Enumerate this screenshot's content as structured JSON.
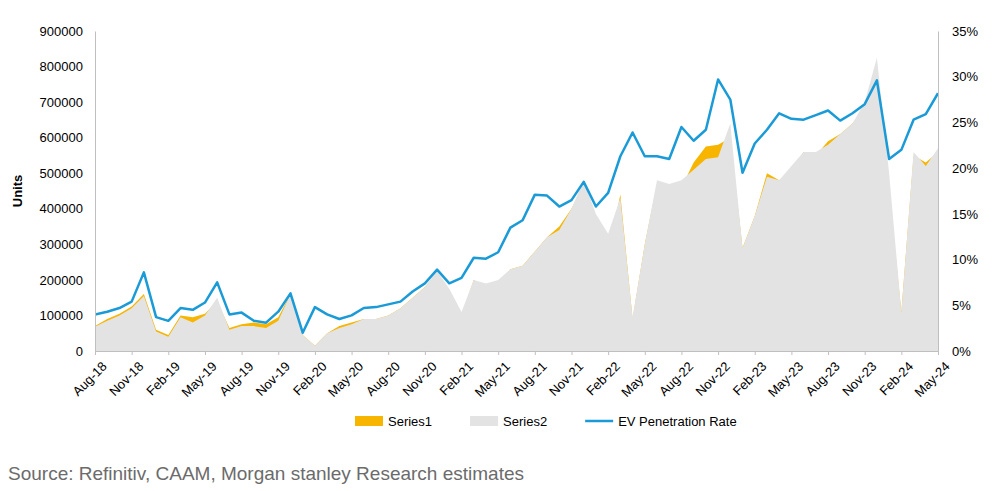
{
  "chart_data": {
    "type": "area",
    "y_label": "Units",
    "source": "Source: Refinitiv, CAAM, Morgan stanley Research estimates",
    "categories": [
      "Aug-18",
      null,
      null,
      "Nov-18",
      null,
      null,
      "Feb-19",
      null,
      null,
      "May-19",
      null,
      null,
      "Aug-19",
      null,
      null,
      "Nov-19",
      null,
      null,
      "Feb-20",
      null,
      null,
      "May-20",
      null,
      null,
      "Aug-20",
      null,
      null,
      "Nov-20",
      null,
      null,
      "Feb-21",
      null,
      null,
      "May-21",
      null,
      null,
      "Aug-21",
      null,
      null,
      "Nov-21",
      null,
      null,
      "Feb-22",
      null,
      null,
      "May-22",
      null,
      null,
      "Aug-22",
      null,
      null,
      "Nov-22",
      null,
      null,
      "Feb-23",
      null,
      null,
      "May-23",
      null,
      null,
      "Aug-23",
      null,
      null,
      "Nov-23",
      null,
      null,
      "Feb-24",
      null,
      null,
      "May-24"
    ],
    "ylim": [
      0,
      900000
    ],
    "yticks": [
      0,
      100000,
      200000,
      300000,
      400000,
      500000,
      600000,
      700000,
      800000,
      900000
    ],
    "y2lim": [
      0,
      35
    ],
    "y2ticks": [
      {
        "value": 0,
        "label": "0%"
      },
      {
        "value": 5,
        "label": "5%"
      },
      {
        "value": 10,
        "label": "10%"
      },
      {
        "value": 15,
        "label": "15%"
      },
      {
        "value": 20,
        "label": "20%"
      },
      {
        "value": 25,
        "label": "25%"
      },
      {
        "value": 30,
        "label": "30%"
      },
      {
        "value": 35,
        "label": "35%"
      }
    ],
    "grid": false,
    "legend": "bottom",
    "series": [
      {
        "name": "Series1",
        "type": "area",
        "color": "#f7b500",
        "values": [
          70000,
          90000,
          105000,
          125000,
          160000,
          60000,
          45000,
          100000,
          95000,
          105000,
          140000,
          65000,
          75000,
          80000,
          75000,
          95000,
          160000,
          45000,
          15000,
          50000,
          70000,
          80000,
          90000,
          90000,
          100000,
          120000,
          150000,
          180000,
          220000,
          170000,
          100000,
          200000,
          180000,
          190000,
          230000,
          240000,
          280000,
          320000,
          350000,
          400000,
          470000,
          380000,
          270000,
          440000,
          90000,
          300000,
          470000,
          470000,
          460000,
          530000,
          575000,
          580000,
          600000,
          290000,
          380000,
          500000,
          480000,
          510000,
          560000,
          550000,
          590000,
          610000,
          640000,
          680000,
          750000,
          450000,
          110000,
          550000,
          530000,
          560000
        ]
      },
      {
        "name": "Series2",
        "type": "area",
        "color": "#e3e3e3",
        "values": [
          68000,
          85000,
          100000,
          120000,
          155000,
          55000,
          40000,
          95000,
          80000,
          100000,
          150000,
          60000,
          70000,
          70000,
          65000,
          85000,
          160000,
          45000,
          15000,
          50000,
          65000,
          75000,
          90000,
          90000,
          100000,
          120000,
          150000,
          180000,
          225000,
          175000,
          110000,
          200000,
          190000,
          200000,
          230000,
          240000,
          280000,
          320000,
          340000,
          400000,
          480000,
          385000,
          330000,
          430000,
          95000,
          300000,
          480000,
          470000,
          480000,
          510000,
          540000,
          545000,
          640000,
          290000,
          380000,
          490000,
          480000,
          520000,
          560000,
          560000,
          580000,
          610000,
          640000,
          700000,
          825000,
          500000,
          110000,
          560000,
          520000,
          570000
        ]
      },
      {
        "name": "EV Penetration Rate",
        "type": "line",
        "axis": "y2",
        "color": "#1a9ad6",
        "values": [
          4.0,
          4.3,
          4.7,
          5.4,
          8.6,
          3.7,
          3.3,
          4.7,
          4.5,
          5.3,
          7.5,
          4.0,
          4.2,
          3.3,
          3.1,
          4.3,
          6.3,
          2.0,
          4.8,
          4.0,
          3.5,
          3.9,
          4.7,
          4.8,
          5.1,
          5.4,
          6.5,
          7.4,
          8.9,
          7.4,
          8.0,
          10.2,
          10.1,
          10.8,
          13.5,
          14.3,
          17.1,
          17.0,
          15.8,
          16.5,
          18.5,
          15.8,
          17.3,
          21.3,
          23.9,
          21.3,
          21.3,
          21.0,
          24.5,
          23.0,
          24.2,
          29.7,
          27.5,
          19.5,
          22.7,
          24.2,
          26.0,
          25.4,
          25.3,
          25.8,
          26.3,
          25.2,
          26.0,
          27.0,
          29.6,
          21.0,
          22.0,
          25.3,
          25.9,
          28.2
        ]
      }
    ]
  }
}
